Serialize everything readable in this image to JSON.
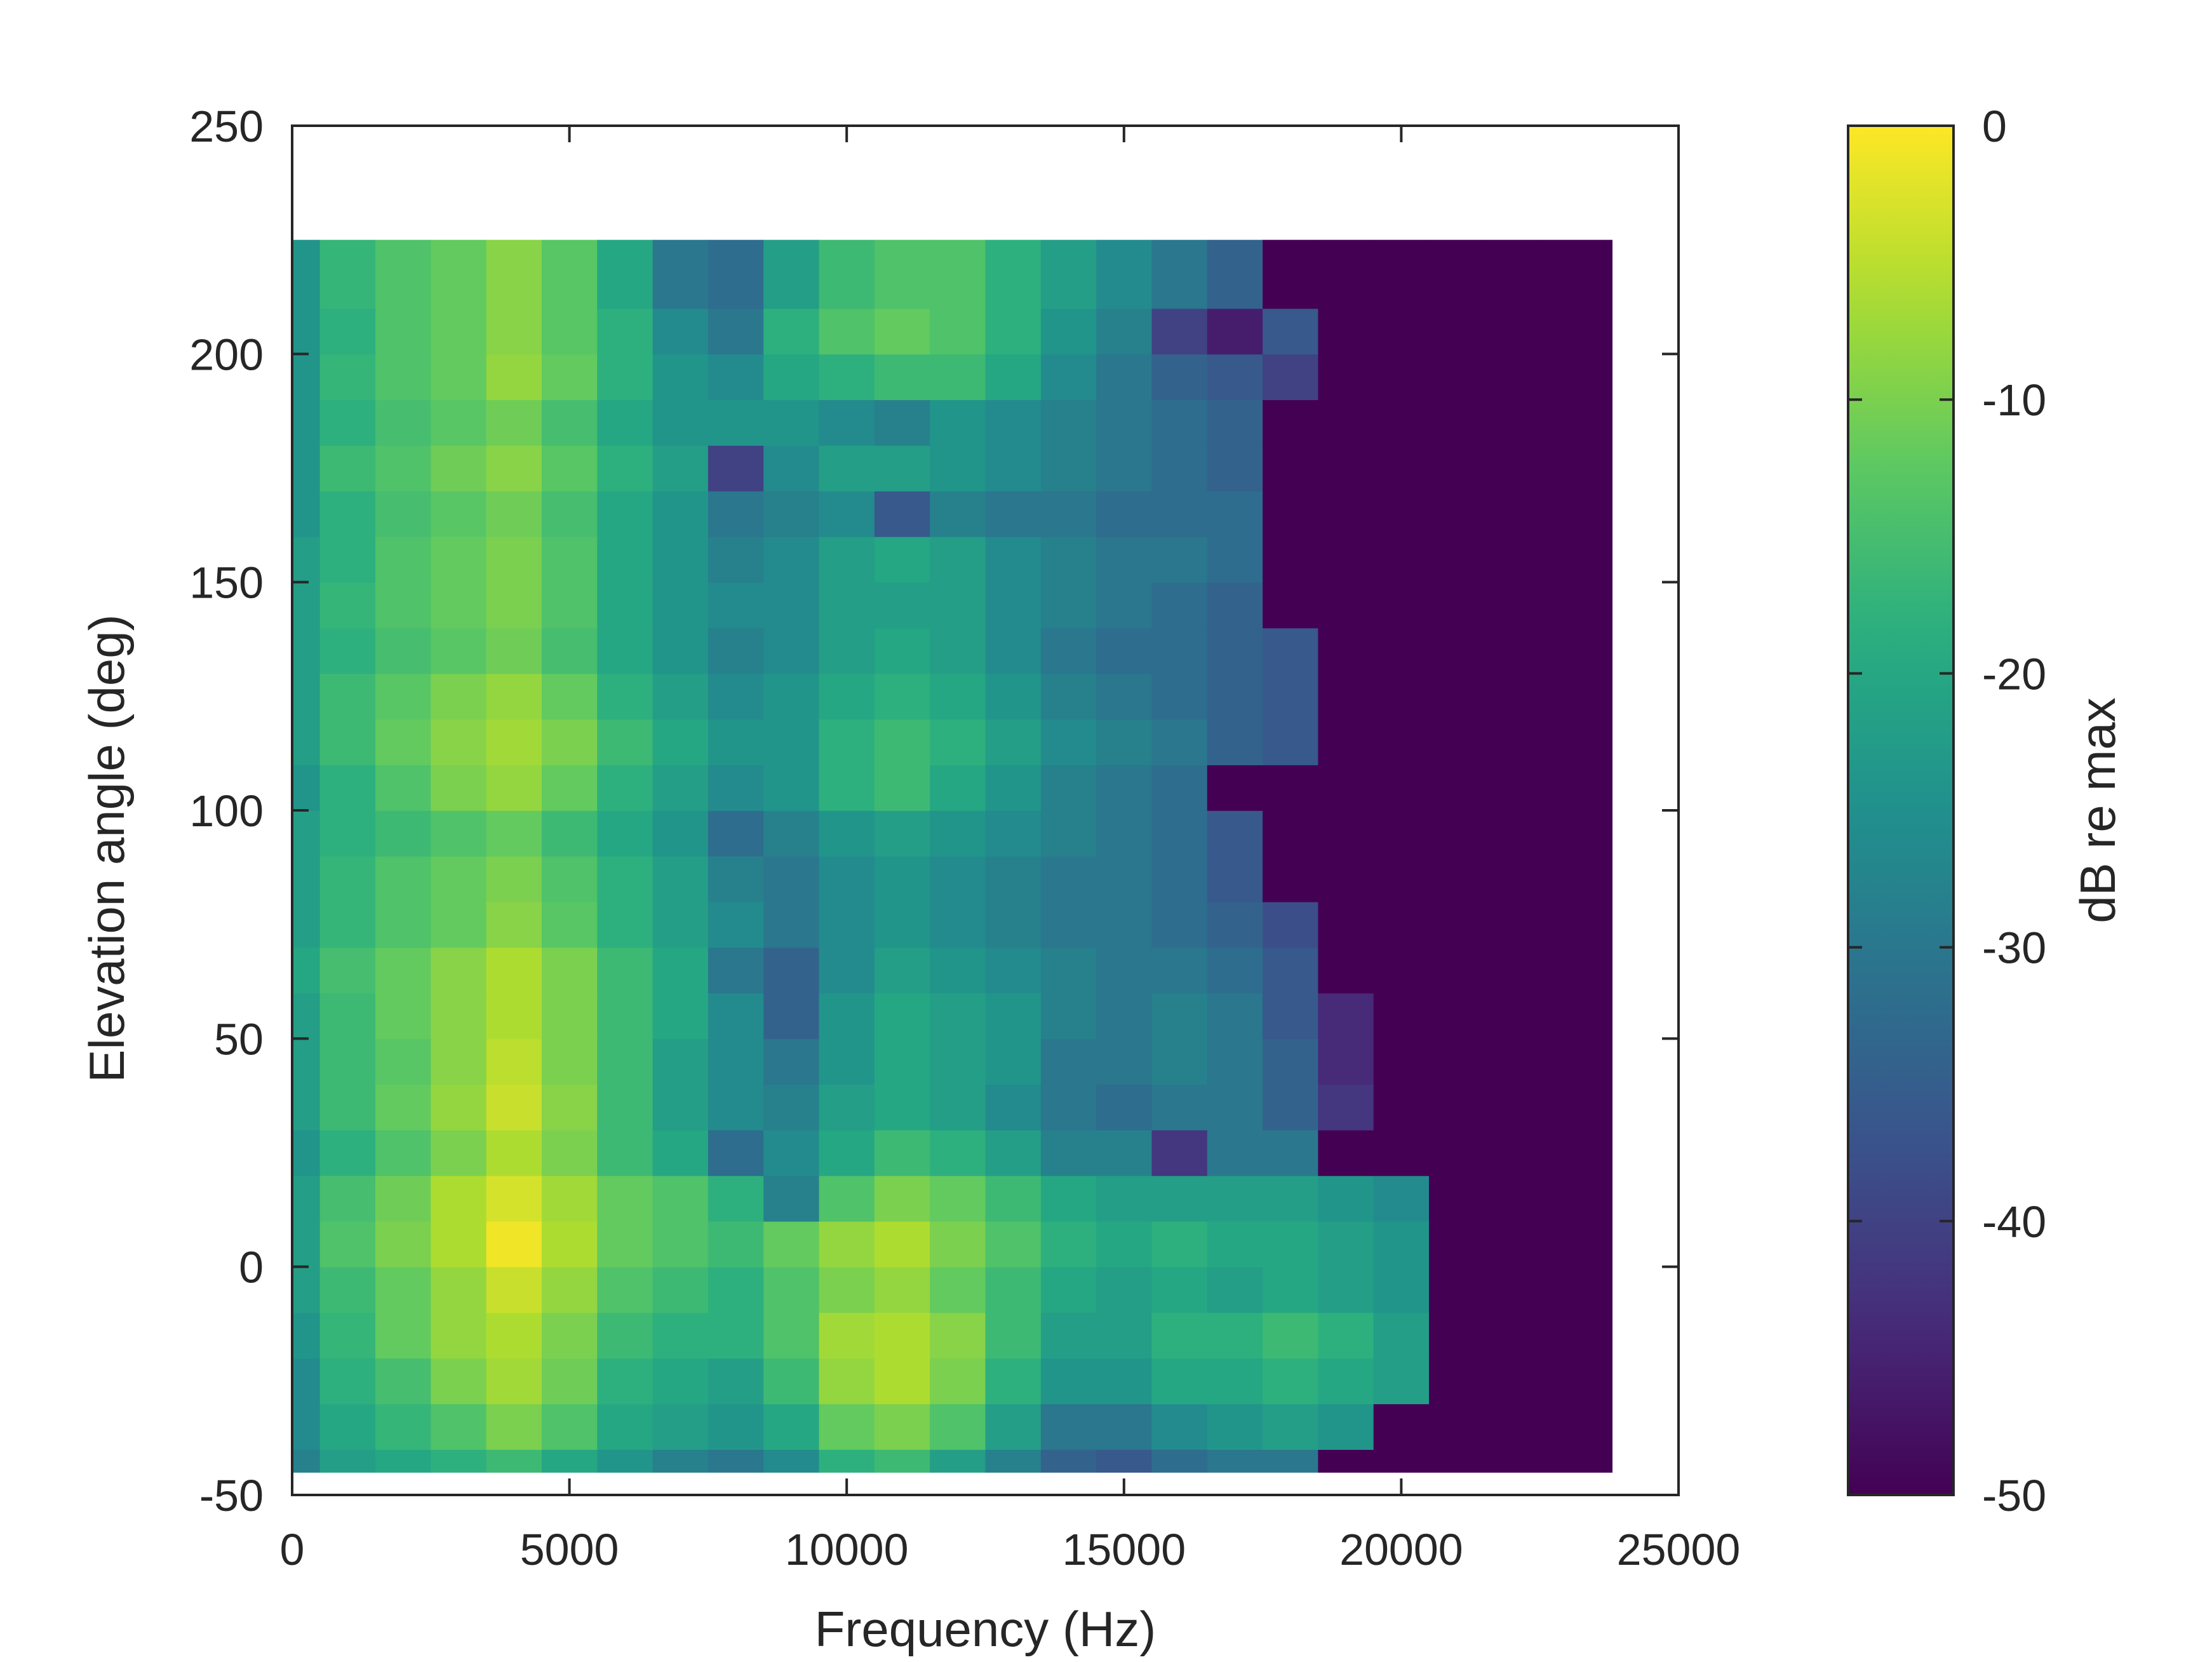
{
  "chart_data": {
    "type": "heatmap",
    "title": "",
    "xlabel": "Frequency (Hz)",
    "ylabel": "Elevation angle (deg)",
    "colorbar_label": "dB re max",
    "xlim": [
      0,
      25000
    ],
    "ylim": [
      -50,
      250
    ],
    "clim": [
      -50,
      0
    ],
    "x_ticks": [
      0,
      5000,
      10000,
      15000,
      20000,
      25000
    ],
    "x_tick_labels": [
      "0",
      "5000",
      "10000",
      "15000",
      "20000",
      "25000"
    ],
    "y_ticks": [
      -50,
      0,
      50,
      100,
      150,
      200,
      250
    ],
    "y_tick_labels": [
      "-50",
      "0",
      "50",
      "100",
      "150",
      "200",
      "250"
    ],
    "colorbar_ticks": [
      0,
      -10,
      -20,
      -30,
      -40,
      -50
    ],
    "colorbar_tick_labels": [
      "0",
      "-10",
      "-20",
      "-30",
      "-40",
      "-50"
    ],
    "colormap": "viridis",
    "grid": false,
    "data_extent": {
      "x": [
        0,
        23800
      ],
      "y": [
        -45,
        225
      ]
    },
    "frequency_hz": [
      0,
      1000,
      2000,
      3000,
      4000,
      5000,
      6000,
      7000,
      8000,
      9000,
      10000,
      11000,
      12000,
      13000,
      14000,
      15000,
      16000,
      17000,
      18000,
      19000,
      20000,
      21000,
      22000,
      23000
    ],
    "elevation_deg": [
      -45,
      -35,
      -25,
      -15,
      -5,
      5,
      15,
      25,
      35,
      45,
      55,
      65,
      75,
      85,
      95,
      105,
      115,
      125,
      135,
      145,
      155,
      165,
      175,
      185,
      195,
      205,
      215
    ],
    "db_values": [
      [
        -28,
        -22,
        -20,
        -18,
        -16,
        -20,
        -24,
        -28,
        -30,
        -26,
        -18,
        -16,
        -22,
        -28,
        -34,
        -36,
        -32,
        -30,
        -30,
        -50,
        -50,
        -50,
        -50,
        -50
      ],
      [
        -26,
        -20,
        -17,
        -14,
        -10,
        -14,
        -20,
        -22,
        -24,
        -20,
        -12,
        -10,
        -14,
        -22,
        -30,
        -30,
        -26,
        -24,
        -22,
        -24,
        -50,
        -50,
        -50,
        -50
      ],
      [
        -26,
        -18,
        -15,
        -10,
        -7,
        -11,
        -18,
        -20,
        -22,
        -16,
        -8,
        -6,
        -10,
        -18,
        -24,
        -24,
        -20,
        -20,
        -18,
        -20,
        -22,
        -50,
        -50,
        -50
      ],
      [
        -24,
        -17,
        -12,
        -8,
        -6,
        -10,
        -16,
        -18,
        -18,
        -14,
        -7,
        -6,
        -9,
        -16,
        -22,
        -22,
        -18,
        -18,
        -16,
        -18,
        -22,
        -50,
        -50,
        -50
      ],
      [
        -22,
        -16,
        -12,
        -8,
        -4,
        -8,
        -14,
        -16,
        -18,
        -14,
        -10,
        -8,
        -12,
        -16,
        -20,
        -22,
        -20,
        -22,
        -20,
        -22,
        -24,
        -50,
        -50,
        -50
      ],
      [
        -22,
        -14,
        -10,
        -6,
        -1,
        -6,
        -12,
        -14,
        -16,
        -12,
        -8,
        -6,
        -10,
        -14,
        -18,
        -20,
        -18,
        -20,
        -20,
        -22,
        -24,
        -50,
        -50,
        -50
      ],
      [
        -22,
        -15,
        -11,
        -6,
        -3,
        -7,
        -12,
        -14,
        -18,
        -28,
        -14,
        -10,
        -12,
        -16,
        -20,
        -22,
        -22,
        -22,
        -22,
        -24,
        -26,
        -50,
        -50,
        -50
      ],
      [
        -24,
        -18,
        -14,
        -10,
        -6,
        -10,
        -16,
        -20,
        -32,
        -26,
        -20,
        -16,
        -18,
        -22,
        -28,
        -28,
        -42,
        -30,
        -30,
        -50,
        -50,
        -50,
        -50,
        -50
      ],
      [
        -22,
        -16,
        -12,
        -8,
        -4,
        -9,
        -16,
        -22,
        -26,
        -28,
        -22,
        -20,
        -22,
        -26,
        -30,
        -32,
        -30,
        -30,
        -34,
        -42,
        -50,
        -50,
        -50,
        -50
      ],
      [
        -22,
        -16,
        -13,
        -9,
        -5,
        -10,
        -16,
        -22,
        -26,
        -30,
        -24,
        -20,
        -22,
        -24,
        -30,
        -30,
        -28,
        -30,
        -34,
        -44,
        -50,
        -50,
        -50,
        -50
      ],
      [
        -22,
        -16,
        -12,
        -9,
        -6,
        -10,
        -16,
        -20,
        -26,
        -34,
        -24,
        -20,
        -22,
        -24,
        -28,
        -30,
        -28,
        -30,
        -36,
        -44,
        -50,
        -50,
        -50,
        -50
      ],
      [
        -20,
        -15,
        -12,
        -9,
        -6,
        -10,
        -16,
        -20,
        -30,
        -34,
        -26,
        -22,
        -24,
        -26,
        -28,
        -30,
        -30,
        -32,
        -36,
        -50,
        -50,
        -50,
        -50,
        -50
      ],
      [
        -22,
        -17,
        -14,
        -12,
        -9,
        -13,
        -18,
        -22,
        -26,
        -30,
        -26,
        -24,
        -26,
        -28,
        -30,
        -30,
        -32,
        -34,
        -38,
        -50,
        -50,
        -50,
        -50,
        -50
      ],
      [
        -22,
        -17,
        -14,
        -12,
        -10,
        -14,
        -18,
        -22,
        -28,
        -30,
        -26,
        -24,
        -26,
        -28,
        -30,
        -30,
        -32,
        -36,
        -50,
        -50,
        -50,
        -50,
        -50,
        -50
      ],
      [
        -22,
        -18,
        -16,
        -14,
        -12,
        -16,
        -20,
        -24,
        -32,
        -28,
        -24,
        -22,
        -24,
        -26,
        -28,
        -30,
        -32,
        -36,
        -50,
        -50,
        -50,
        -50,
        -50,
        -50
      ],
      [
        -24,
        -18,
        -14,
        -10,
        -8,
        -12,
        -18,
        -22,
        -26,
        -24,
        -18,
        -16,
        -20,
        -24,
        -28,
        -30,
        -32,
        -50,
        -50,
        -50,
        -50,
        -50,
        -50,
        -50
      ],
      [
        -22,
        -16,
        -12,
        -9,
        -7,
        -10,
        -16,
        -20,
        -24,
        -24,
        -18,
        -16,
        -18,
        -22,
        -26,
        -28,
        -30,
        -34,
        -36,
        -50,
        -50,
        -50,
        -50,
        -50
      ],
      [
        -22,
        -16,
        -13,
        -10,
        -8,
        -12,
        -18,
        -22,
        -26,
        -24,
        -20,
        -18,
        -20,
        -24,
        -28,
        -30,
        -32,
        -34,
        -36,
        -50,
        -50,
        -50,
        -50,
        -50
      ],
      [
        -22,
        -18,
        -15,
        -13,
        -11,
        -15,
        -20,
        -24,
        -28,
        -26,
        -22,
        -20,
        -22,
        -26,
        -30,
        -32,
        -32,
        -34,
        -36,
        -50,
        -50,
        -50,
        -50,
        -50
      ],
      [
        -22,
        -17,
        -14,
        -12,
        -10,
        -14,
        -20,
        -24,
        -26,
        -26,
        -22,
        -22,
        -22,
        -26,
        -28,
        -30,
        -32,
        -34,
        -50,
        -50,
        -50,
        -50,
        -50,
        -50
      ],
      [
        -22,
        -18,
        -14,
        -12,
        -10,
        -14,
        -20,
        -24,
        -28,
        -26,
        -22,
        -20,
        -22,
        -26,
        -28,
        -30,
        -30,
        -32,
        -50,
        -50,
        -50,
        -50,
        -50,
        -50
      ],
      [
        -24,
        -18,
        -15,
        -13,
        -11,
        -15,
        -20,
        -24,
        -30,
        -28,
        -26,
        -36,
        -28,
        -30,
        -30,
        -32,
        -32,
        -32,
        -50,
        -50,
        -50,
        -50,
        -50,
        -50
      ],
      [
        -24,
        -16,
        -14,
        -11,
        -9,
        -13,
        -18,
        -22,
        -40,
        -26,
        -22,
        -22,
        -24,
        -26,
        -28,
        -30,
        -32,
        -34,
        -50,
        -50,
        -50,
        -50,
        -50,
        -50
      ],
      [
        -24,
        -18,
        -15,
        -13,
        -11,
        -15,
        -20,
        -24,
        -24,
        -24,
        -26,
        -28,
        -24,
        -26,
        -28,
        -30,
        -32,
        -34,
        -50,
        -50,
        -50,
        -50,
        -50,
        -50
      ],
      [
        -24,
        -17,
        -14,
        -12,
        -8,
        -12,
        -18,
        -24,
        -26,
        -20,
        -18,
        -16,
        -16,
        -20,
        -26,
        -30,
        -34,
        -36,
        -40,
        -50,
        -50,
        -50,
        -50,
        -50
      ],
      [
        -24,
        -18,
        -14,
        -12,
        -9,
        -13,
        -18,
        -26,
        -30,
        -18,
        -14,
        -12,
        -14,
        -18,
        -24,
        -28,
        -40,
        -46,
        -36,
        -50,
        -50,
        -50,
        -50,
        -50
      ],
      [
        -24,
        -17,
        -14,
        -12,
        -9,
        -13,
        -20,
        -30,
        -32,
        -22,
        -16,
        -14,
        -14,
        -18,
        -22,
        -26,
        -30,
        -34,
        -50,
        -50,
        -50,
        -50,
        -50,
        -50
      ]
    ]
  }
}
